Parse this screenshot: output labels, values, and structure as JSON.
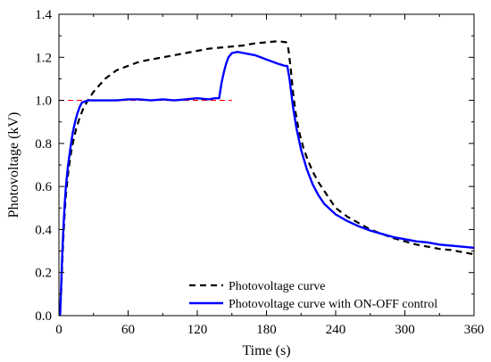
{
  "chart_data": {
    "type": "line",
    "title": "",
    "xlabel": "Time (s)",
    "ylabel": "Photovoltage (kV)",
    "xlim": [
      0,
      360
    ],
    "ylim": [
      0.0,
      1.4
    ],
    "x_ticks": [
      0,
      60,
      120,
      180,
      240,
      300,
      360
    ],
    "x_tick_labels": [
      "0",
      "60",
      "120",
      "180",
      "240",
      "300",
      "360"
    ],
    "y_ticks": [
      0.0,
      0.2,
      0.4,
      0.6,
      0.8,
      1.0,
      1.2,
      1.4
    ],
    "y_tick_labels": [
      "0.0",
      "0.2",
      "0.4",
      "0.6",
      "0.8",
      "1.0",
      "1.2",
      "1.4"
    ],
    "grid": false,
    "legend_position": "bottom-right",
    "reference_line": {
      "y": 1.0,
      "x_range": [
        0,
        150
      ],
      "color": "#ff0000",
      "style": "dashed"
    },
    "series": [
      {
        "name": "Photovoltage curve",
        "color": "#000000",
        "style": "dashed",
        "x": [
          1,
          2,
          3,
          4,
          5,
          6,
          8,
          10,
          12,
          15,
          18,
          21,
          25,
          30,
          35,
          40,
          50,
          60,
          70,
          80,
          90,
          100,
          110,
          120,
          130,
          140,
          150,
          160,
          170,
          180,
          190,
          197,
          199,
          201,
          203,
          205,
          208,
          212,
          216,
          220,
          225,
          230,
          235,
          240,
          250,
          260,
          270,
          280,
          290,
          300,
          310,
          320,
          330,
          340,
          350,
          360
        ],
        "values": [
          0.0,
          0.12,
          0.26,
          0.38,
          0.48,
          0.56,
          0.66,
          0.74,
          0.8,
          0.87,
          0.92,
          0.96,
          1.0,
          1.04,
          1.07,
          1.1,
          1.14,
          1.16,
          1.18,
          1.19,
          1.2,
          1.21,
          1.22,
          1.23,
          1.24,
          1.245,
          1.25,
          1.255,
          1.265,
          1.27,
          1.275,
          1.27,
          1.24,
          1.15,
          1.04,
          0.95,
          0.86,
          0.78,
          0.72,
          0.67,
          0.62,
          0.58,
          0.54,
          0.5,
          0.46,
          0.43,
          0.4,
          0.38,
          0.36,
          0.345,
          0.33,
          0.32,
          0.31,
          0.305,
          0.295,
          0.285
        ]
      },
      {
        "name": "Photovoltage curve with ON-OFF control",
        "color": "#0000ff",
        "style": "solid",
        "x": [
          1,
          2,
          3,
          4,
          5,
          6,
          8,
          10,
          12,
          14,
          16,
          18,
          20,
          25,
          30,
          40,
          50,
          60,
          70,
          80,
          90,
          100,
          110,
          120,
          130,
          135,
          139,
          141,
          143,
          145,
          147,
          150,
          155,
          160,
          165,
          170,
          175,
          180,
          185,
          190,
          193,
          196,
          198,
          200,
          203,
          206,
          210,
          215,
          220,
          225,
          230,
          240,
          250,
          260,
          270,
          280,
          290,
          300,
          310,
          320,
          330,
          340,
          350,
          360
        ],
        "values": [
          0.0,
          0.15,
          0.3,
          0.42,
          0.52,
          0.6,
          0.7,
          0.78,
          0.85,
          0.9,
          0.94,
          0.97,
          0.99,
          1.0,
          1.0,
          1.0,
          1.0,
          1.005,
          1.005,
          1.0,
          1.005,
          1.0,
          1.005,
          1.01,
          1.005,
          1.01,
          1.01,
          1.08,
          1.13,
          1.17,
          1.2,
          1.22,
          1.225,
          1.22,
          1.215,
          1.21,
          1.2,
          1.19,
          1.18,
          1.17,
          1.165,
          1.16,
          1.16,
          1.1,
          0.97,
          0.87,
          0.77,
          0.68,
          0.61,
          0.56,
          0.52,
          0.47,
          0.44,
          0.415,
          0.395,
          0.38,
          0.365,
          0.355,
          0.345,
          0.34,
          0.33,
          0.325,
          0.32,
          0.315
        ]
      }
    ]
  }
}
